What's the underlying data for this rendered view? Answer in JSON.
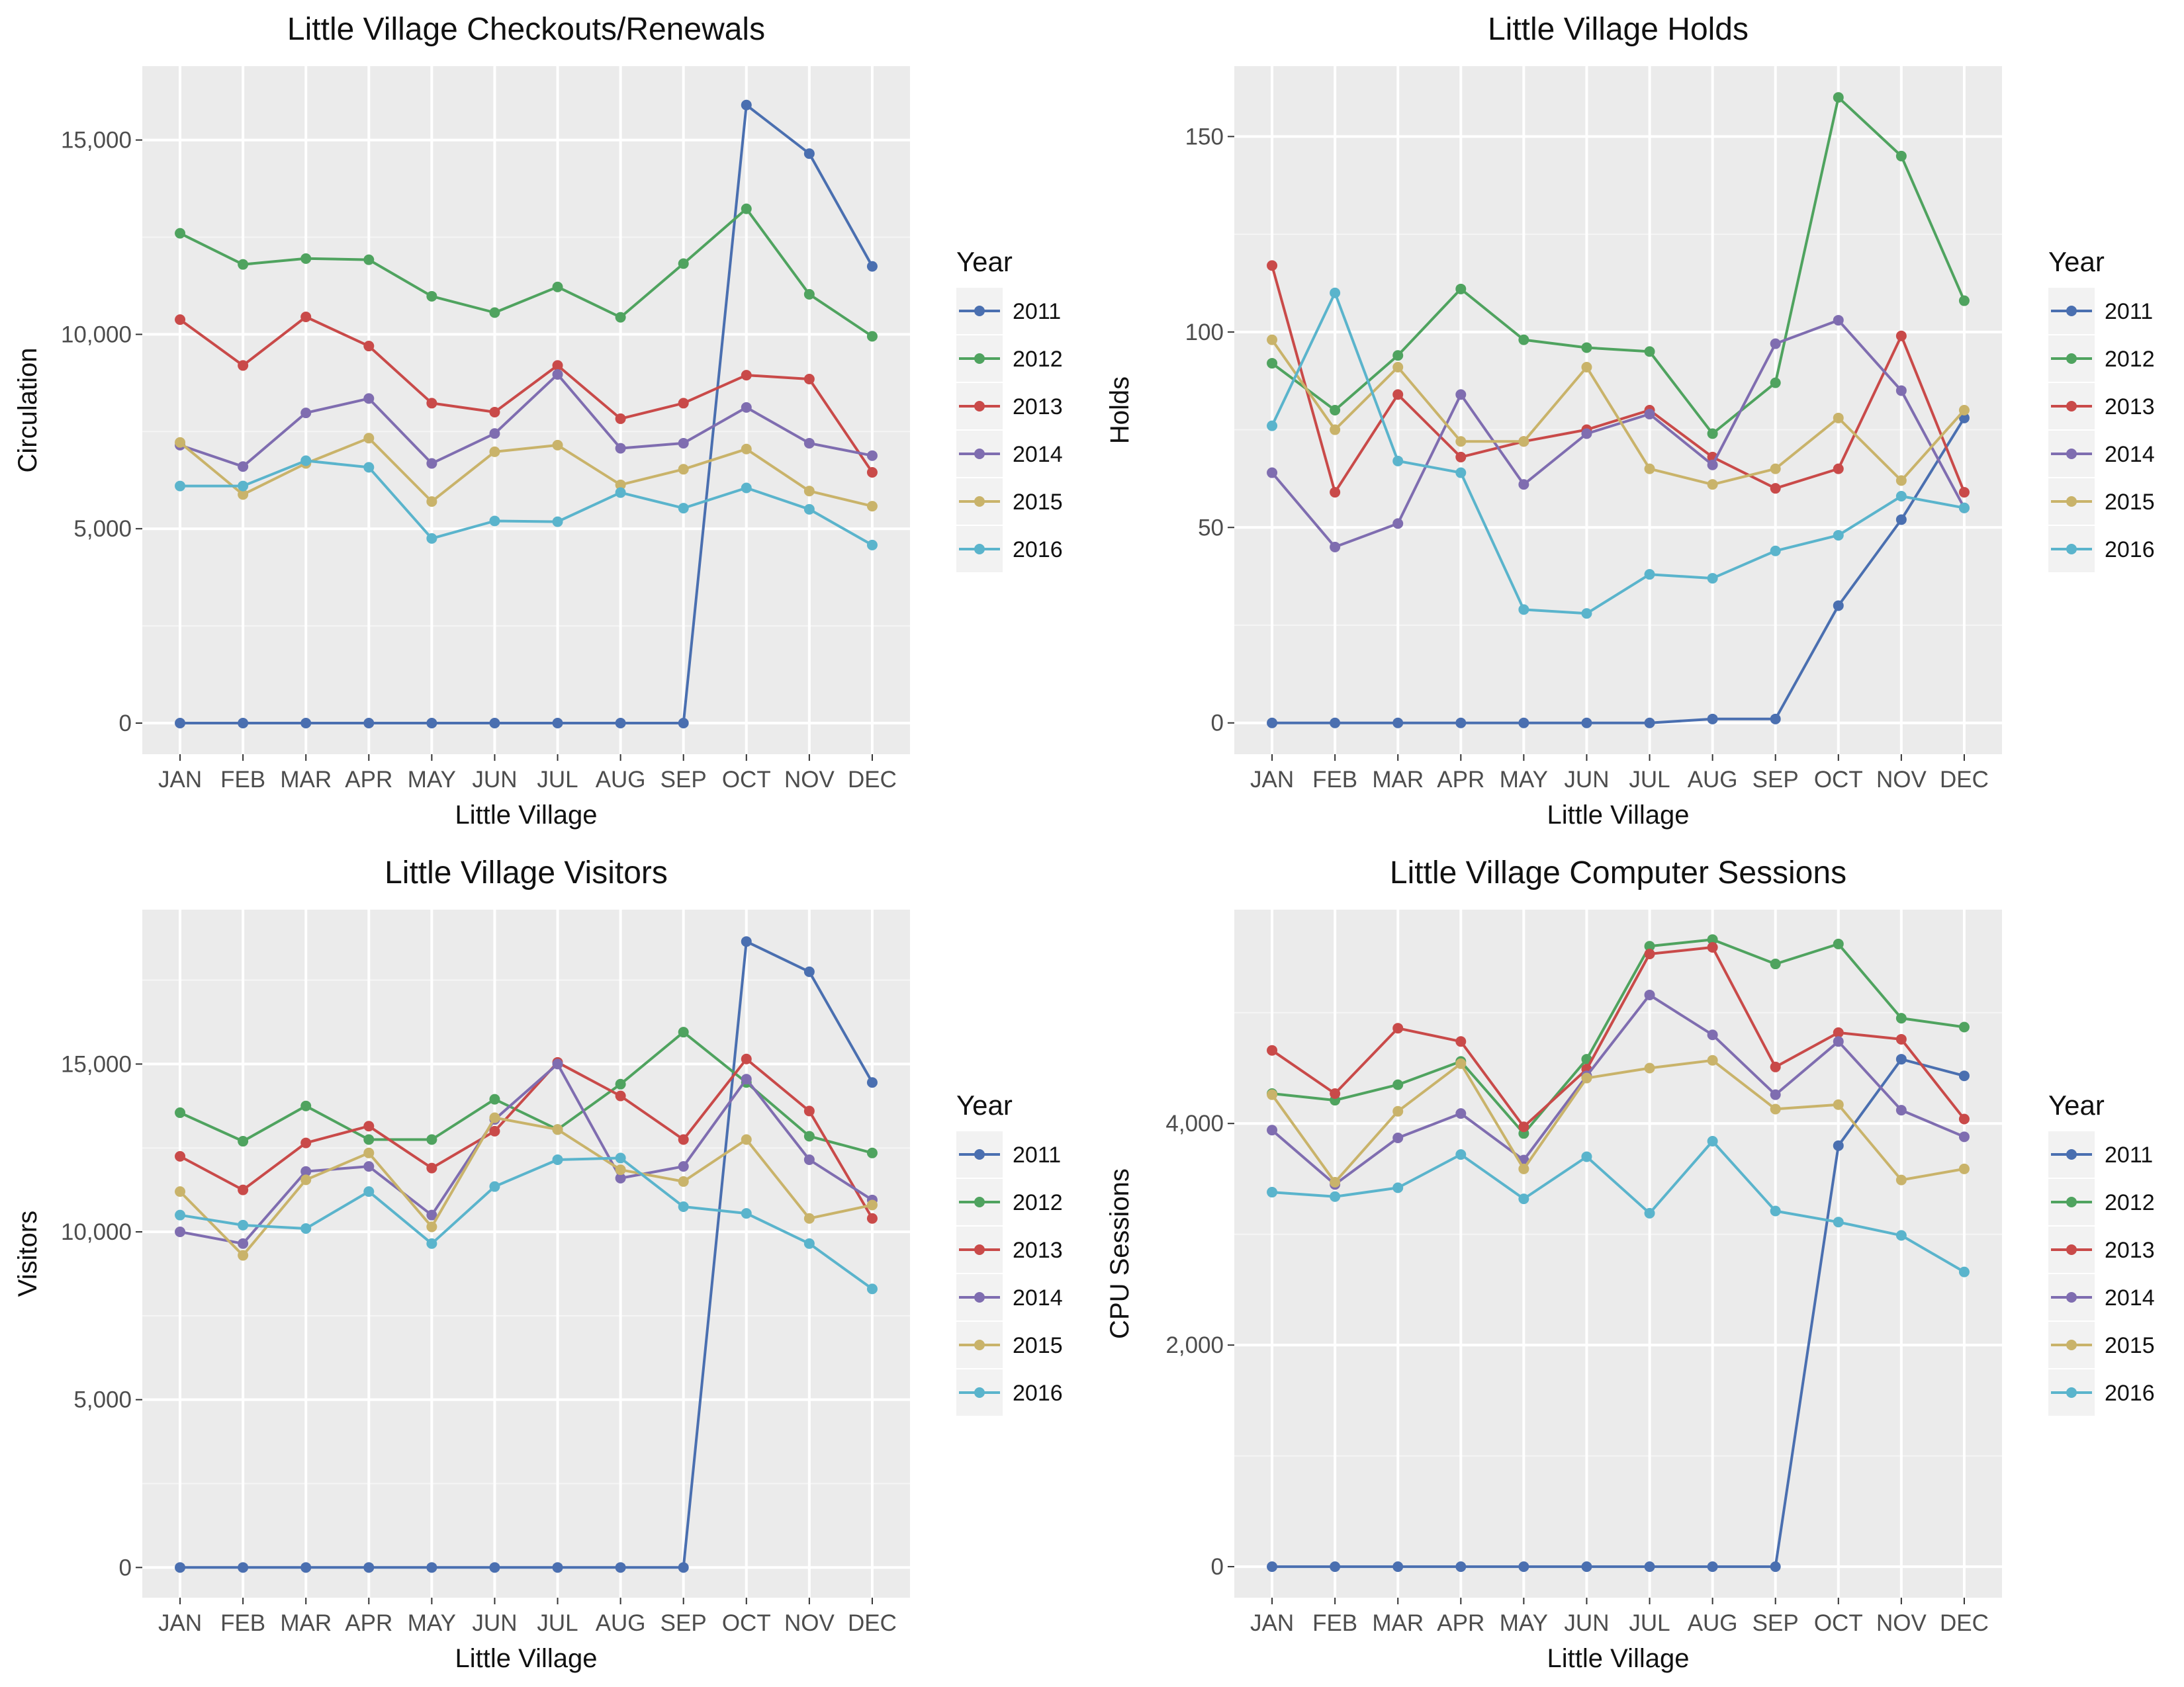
{
  "legend_title": "Year",
  "months": [
    "JAN",
    "FEB",
    "MAR",
    "APR",
    "MAY",
    "JUN",
    "JUL",
    "AUG",
    "SEP",
    "OCT",
    "NOV",
    "DEC"
  ],
  "series_colors": {
    "2011": "#4a6fb0",
    "2012": "#4fa35f",
    "2013": "#c94a49",
    "2014": "#7f6db0",
    "2015": "#c9b36a",
    "2016": "#5ab4cc"
  },
  "panel_background": "#ebebeb",
  "chart_data": [
    {
      "type": "line",
      "title": "Little Village Checkouts/Renewals",
      "xlabel": "Little Village",
      "ylabel": "Circulation",
      "ylim": [
        -800,
        16900
      ],
      "yticks": [
        0,
        5000,
        10000,
        15000
      ],
      "ytick_labels": [
        "0",
        "5,000",
        "10,000",
        "15,000"
      ],
      "categories": [
        "JAN",
        "FEB",
        "MAR",
        "APR",
        "MAY",
        "JUN",
        "JUL",
        "AUG",
        "SEP",
        "OCT",
        "NOV",
        "DEC"
      ],
      "legend": "right",
      "series": [
        {
          "name": "2011",
          "values": [
            0,
            0,
            0,
            0,
            0,
            0,
            0,
            0,
            0,
            15900,
            14650,
            11750
          ]
        },
        {
          "name": "2012",
          "values": [
            12600,
            11800,
            11950,
            11920,
            10980,
            10560,
            11220,
            10440,
            11820,
            13230,
            11030,
            9950
          ]
        },
        {
          "name": "2013",
          "values": [
            10380,
            9200,
            10450,
            9700,
            8230,
            8000,
            9200,
            7830,
            8230,
            8950,
            8850,
            6450
          ]
        },
        {
          "name": "2014",
          "values": [
            7150,
            6600,
            7980,
            8350,
            6680,
            7450,
            8970,
            7070,
            7200,
            8120,
            7200,
            6880
          ]
        },
        {
          "name": "2015",
          "values": [
            7220,
            5880,
            6680,
            7330,
            5700,
            6980,
            7150,
            6130,
            6530,
            7050,
            5970,
            5580
          ]
        },
        {
          "name": "2016",
          "values": [
            6100,
            6100,
            6750,
            6580,
            4750,
            5200,
            5180,
            5930,
            5530,
            6050,
            5500,
            4580
          ]
        }
      ]
    },
    {
      "type": "line",
      "title": "Little Village Holds",
      "xlabel": "Little Village",
      "ylabel": "Holds",
      "ylim": [
        -8,
        168
      ],
      "yticks": [
        0,
        50,
        100,
        150
      ],
      "ytick_labels": [
        "0",
        "50",
        "100",
        "150"
      ],
      "categories": [
        "JAN",
        "FEB",
        "MAR",
        "APR",
        "MAY",
        "JUN",
        "JUL",
        "AUG",
        "SEP",
        "OCT",
        "NOV",
        "DEC"
      ],
      "legend": "right",
      "series": [
        {
          "name": "2011",
          "values": [
            0,
            0,
            0,
            0,
            0,
            0,
            0,
            1,
            1,
            30,
            52,
            78
          ]
        },
        {
          "name": "2012",
          "values": [
            92,
            80,
            94,
            111,
            98,
            96,
            95,
            74,
            87,
            160,
            145,
            108
          ]
        },
        {
          "name": "2013",
          "values": [
            117,
            59,
            84,
            68,
            72,
            75,
            80,
            68,
            60,
            65,
            99,
            59
          ]
        },
        {
          "name": "2014",
          "values": [
            64,
            45,
            51,
            84,
            61,
            74,
            79,
            66,
            97,
            103,
            85,
            55
          ]
        },
        {
          "name": "2015",
          "values": [
            98,
            75,
            91,
            72,
            72,
            91,
            65,
            61,
            65,
            78,
            62,
            80
          ]
        },
        {
          "name": "2016",
          "values": [
            76,
            110,
            67,
            64,
            29,
            28,
            38,
            37,
            44,
            48,
            58,
            55
          ]
        }
      ]
    },
    {
      "type": "line",
      "title": "Little Village Visitors",
      "xlabel": "Little Village",
      "ylabel": "Visitors",
      "ylim": [
        -900,
        19600
      ],
      "yticks": [
        0,
        5000,
        10000,
        15000
      ],
      "ytick_labels": [
        "0",
        "5,000",
        "10,000",
        "15,000"
      ],
      "categories": [
        "JAN",
        "FEB",
        "MAR",
        "APR",
        "MAY",
        "JUN",
        "JUL",
        "AUG",
        "SEP",
        "OCT",
        "NOV",
        "DEC"
      ],
      "legend": "right",
      "series": [
        {
          "name": "2011",
          "values": [
            0,
            0,
            0,
            0,
            0,
            0,
            0,
            0,
            0,
            18650,
            17750,
            14450
          ]
        },
        {
          "name": "2012",
          "values": [
            13550,
            12700,
            13750,
            12750,
            12750,
            13950,
            13050,
            14400,
            15950,
            14450,
            12850,
            12350
          ]
        },
        {
          "name": "2013",
          "values": [
            12250,
            11250,
            12650,
            13150,
            11900,
            13000,
            15050,
            14050,
            12750,
            15150,
            13600,
            10400
          ]
        },
        {
          "name": "2014",
          "values": [
            10000,
            9650,
            11800,
            11950,
            10500,
            13350,
            15000,
            11600,
            11950,
            14550,
            12150,
            10950
          ]
        },
        {
          "name": "2015",
          "values": [
            11200,
            9300,
            11550,
            12350,
            10150,
            13400,
            13050,
            11850,
            11500,
            12750,
            10400,
            10800
          ]
        },
        {
          "name": "2016",
          "values": [
            10500,
            10200,
            10100,
            11200,
            9650,
            11350,
            12150,
            12200,
            10750,
            10550,
            9650,
            8300
          ]
        }
      ]
    },
    {
      "type": "line",
      "title": "Little Village Computer Sessions",
      "xlabel": "Little Village",
      "ylabel": "CPU Sessions",
      "ylim": [
        -280,
        5930
      ],
      "yticks": [
        0,
        2000,
        4000
      ],
      "ytick_labels": [
        "0",
        "2,000",
        "4,000"
      ],
      "categories": [
        "JAN",
        "FEB",
        "MAR",
        "APR",
        "MAY",
        "JUN",
        "JUL",
        "AUG",
        "SEP",
        "OCT",
        "NOV",
        "DEC"
      ],
      "legend": "right",
      "series": [
        {
          "name": "2011",
          "values": [
            0,
            0,
            0,
            0,
            0,
            0,
            0,
            0,
            0,
            3800,
            4580,
            4430
          ]
        },
        {
          "name": "2012",
          "values": [
            4270,
            4210,
            4350,
            4560,
            3910,
            4580,
            5600,
            5660,
            5440,
            5620,
            4950,
            4870
          ]
        },
        {
          "name": "2013",
          "values": [
            4660,
            4270,
            4860,
            4740,
            3970,
            4490,
            5530,
            5590,
            4510,
            4820,
            4760,
            4040
          ]
        },
        {
          "name": "2014",
          "values": [
            3940,
            3450,
            3870,
            4090,
            3670,
            4430,
            5160,
            4800,
            4260,
            4740,
            4120,
            3880
          ]
        },
        {
          "name": "2015",
          "values": [
            4260,
            3470,
            4110,
            4540,
            3590,
            4410,
            4500,
            4570,
            4130,
            4170,
            3490,
            3590
          ]
        },
        {
          "name": "2016",
          "values": [
            3380,
            3340,
            3420,
            3720,
            3320,
            3700,
            3190,
            3840,
            3210,
            3110,
            2990,
            2660
          ]
        }
      ]
    }
  ]
}
